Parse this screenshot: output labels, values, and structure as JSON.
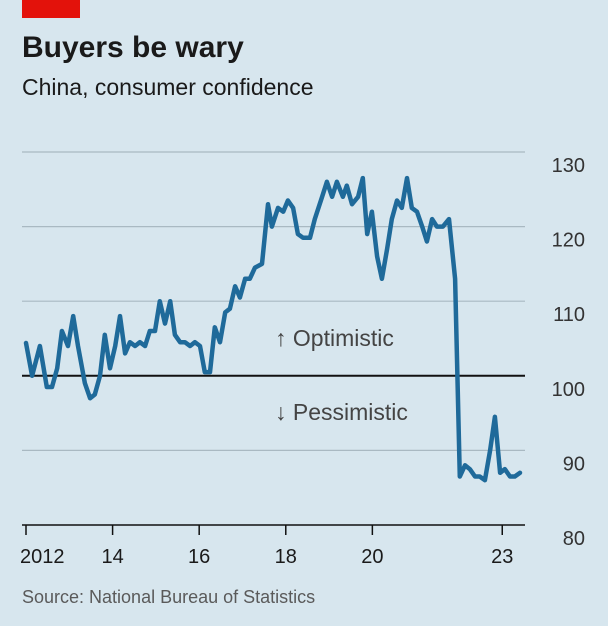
{
  "chart_data": {
    "type": "line",
    "title": "Buyers be wary",
    "subtitle": "China, consumer confidence",
    "source": "Source: National Bureau of Statistics",
    "annotations": [
      "↑ Optimistic",
      "↓ Pessimistic"
    ],
    "x": [
      2012.0,
      2012.14,
      2012.32,
      2012.48,
      2012.6,
      2012.72,
      2012.83,
      2012.97,
      2013.09,
      2013.2,
      2013.36,
      2013.48,
      2013.59,
      2013.71,
      2013.82,
      2013.94,
      2014.06,
      2014.17,
      2014.29,
      2014.4,
      2014.52,
      2014.63,
      2014.75,
      2014.86,
      2014.98,
      2015.09,
      2015.21,
      2015.33,
      2015.44,
      2015.56,
      2015.67,
      2015.79,
      2015.9,
      2016.02,
      2016.13,
      2016.25,
      2016.36,
      2016.48,
      2016.6,
      2016.71,
      2016.83,
      2016.94,
      2017.06,
      2017.17,
      2017.29,
      2017.45,
      2017.59,
      2017.68,
      2017.82,
      2017.94,
      2018.05,
      2018.17,
      2018.28,
      2018.4,
      2018.56,
      2018.67,
      2018.84,
      2018.95,
      2019.07,
      2019.18,
      2019.32,
      2019.41,
      2019.53,
      2019.67,
      2019.78,
      2019.88,
      2019.99,
      2020.11,
      2020.22,
      2020.34,
      2020.45,
      2020.57,
      2020.68,
      2020.8,
      2020.91,
      2021.03,
      2021.15,
      2021.26,
      2021.38,
      2021.49,
      2021.63,
      2021.77,
      2021.91,
      2022.02,
      2022.14,
      2022.25,
      2022.37,
      2022.48,
      2022.6,
      2022.72,
      2022.83,
      2022.95,
      2023.06,
      2023.18,
      2023.29,
      2023.41
    ],
    "series": [
      {
        "name": "Consumer confidence",
        "color": "#1f6a9a",
        "values": [
          104.4,
          100,
          104,
          98.5,
          98.5,
          101,
          106,
          104,
          108,
          104,
          99,
          97,
          97.5,
          100,
          105.5,
          101,
          104,
          108,
          103,
          104.5,
          104,
          104.5,
          104,
          106,
          106,
          110,
          107,
          110,
          105.5,
          104.5,
          104.5,
          104,
          104.5,
          104,
          100.5,
          100.5,
          106.5,
          104.5,
          108.5,
          109,
          112,
          110.5,
          113,
          113,
          114.5,
          115,
          123,
          120,
          122.5,
          122,
          123.5,
          122.5,
          119,
          118.5,
          118.5,
          121,
          124,
          126,
          124,
          126,
          124,
          125.5,
          123,
          124,
          126.5,
          119,
          122,
          116,
          113,
          117,
          121,
          123.5,
          122.5,
          126.5,
          122.5,
          122,
          120,
          118,
          121,
          120,
          120,
          121,
          113,
          86.5,
          88,
          87.5,
          86.5,
          86.5,
          86,
          90,
          94.5,
          87,
          87.5,
          86.5,
          86.5,
          87
        ]
      }
    ],
    "xlim": [
      2012,
      2023.41
    ],
    "xticks": [
      {
        "value": 2012,
        "label": "2012"
      },
      {
        "value": 2014,
        "label": "14"
      },
      {
        "value": 2016,
        "label": "16"
      },
      {
        "value": 2018,
        "label": "18"
      },
      {
        "value": 2020,
        "label": "20"
      },
      {
        "value": 2023,
        "label": "23"
      }
    ],
    "ylim": [
      80,
      130
    ],
    "yticks": [
      80,
      90,
      100,
      110,
      120,
      130
    ],
    "baseline": 100,
    "grid": true
  }
}
